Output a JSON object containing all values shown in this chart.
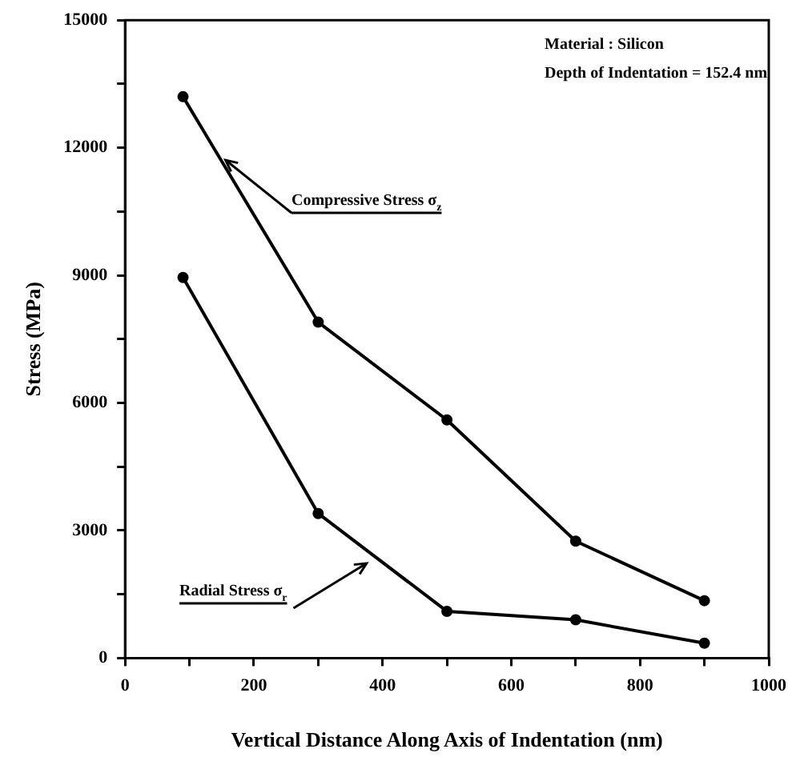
{
  "chart_data": {
    "type": "line",
    "xlabel": "Vertical Distance Along Axis of Indentation (nm)",
    "ylabel": "Stress (MPa)",
    "x": [
      90,
      300,
      500,
      700,
      900
    ],
    "series": [
      {
        "name": "Compressive Stress σ$_{z}$",
        "color": "#000000",
        "values": [
          13200,
          7900,
          5600,
          2750,
          1350
        ]
      },
      {
        "name": "Radial Stress σ$_{r}$",
        "color": "#000000",
        "values": [
          8950,
          3400,
          1100,
          900,
          350
        ]
      }
    ],
    "xlim": [
      0,
      1000
    ],
    "xticks": [
      0,
      {
        "value": 100,
        "label": null
      },
      200,
      {
        "value": 300,
        "label": null
      },
      400,
      {
        "value": 500,
        "label": null
      },
      600,
      {
        "value": 700,
        "label": null
      },
      800,
      {
        "value": 900,
        "label": null
      },
      1000
    ],
    "ylim": [
      0,
      15000
    ],
    "yticks": [
      0,
      {
        "value": 1500,
        "label": null
      },
      3000,
      {
        "value": 4500,
        "label": null
      },
      6000,
      {
        "value": 7500,
        "label": null
      },
      9000,
      {
        "value": 10500,
        "label": null
      },
      12000,
      {
        "value": 13500,
        "label": null
      },
      15000
    ],
    "annotations": [
      "Material : Silicon",
      "Depth of Indentation = 152.4 nm"
    ],
    "grid": false,
    "legend": false,
    "marker": "circle",
    "line_style": "solid"
  }
}
